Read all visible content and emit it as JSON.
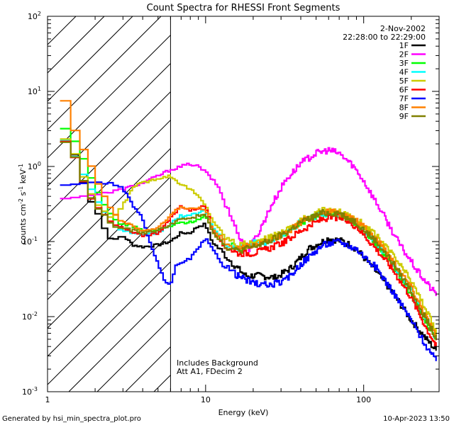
{
  "chart_data": {
    "type": "line",
    "title": "Count Spectra for RHESSI Front Segments",
    "xlabel": "Energy (keV)",
    "ylabel": "counts cm-2 s-1 keV-1",
    "xscale": "log",
    "yscale": "log",
    "xlim": [
      1,
      300
    ],
    "ylim": [
      0.001,
      100
    ],
    "x_ticks": [
      {
        "v": 1,
        "label": "1"
      },
      {
        "v": 10,
        "label": "10"
      },
      {
        "v": 100,
        "label": "100"
      }
    ],
    "y_ticks": [
      {
        "v": 0.001,
        "base": "10",
        "exp": "-3"
      },
      {
        "v": 0.01,
        "base": "10",
        "exp": "-2"
      },
      {
        "v": 0.1,
        "base": "10",
        "exp": "-1"
      },
      {
        "v": 1,
        "base": "10",
        "exp": "0"
      },
      {
        "v": 10,
        "base": "10",
        "exp": "1"
      },
      {
        "v": 100,
        "base": "10",
        "exp": "2"
      }
    ],
    "attenuator_region_keV": [
      1,
      6
    ],
    "legend": {
      "date": "2-Nov-2002",
      "time_range": "22:28:00 to 22:29:00",
      "position": "top-right"
    },
    "annotations": [
      "Includes Background",
      "Att A1, FDecim 2"
    ],
    "series": [
      {
        "name": "1F",
        "color": "#000000",
        "points": [
          [
            1.2,
            2.2
          ],
          [
            1.4,
            2.1
          ],
          [
            1.6,
            1.0
          ],
          [
            1.8,
            0.4
          ],
          [
            2.0,
            0.3
          ],
          [
            2.3,
            0.15
          ],
          [
            2.6,
            0.1
          ],
          [
            3.0,
            0.12
          ],
          [
            3.5,
            0.09
          ],
          [
            4.0,
            0.085
          ],
          [
            5.0,
            0.09
          ],
          [
            6.0,
            0.1
          ],
          [
            7.0,
            0.13
          ],
          [
            8.0,
            0.13
          ],
          [
            9.0,
            0.16
          ],
          [
            10,
            0.17
          ],
          [
            11,
            0.1
          ],
          [
            13,
            0.07
          ],
          [
            15,
            0.05
          ],
          [
            18,
            0.035
          ],
          [
            22,
            0.035
          ],
          [
            28,
            0.033
          ],
          [
            35,
            0.045
          ],
          [
            45,
            0.08
          ],
          [
            60,
            0.11
          ],
          [
            75,
            0.1
          ],
          [
            90,
            0.08
          ],
          [
            120,
            0.04
          ],
          [
            150,
            0.022
          ],
          [
            200,
            0.009
          ],
          [
            250,
            0.005
          ],
          [
            290,
            0.0035
          ]
        ]
      },
      {
        "name": "2F",
        "color": "#ff00ff",
        "points": [
          [
            1.2,
            0.35
          ],
          [
            1.5,
            0.4
          ],
          [
            2.0,
            0.42
          ],
          [
            2.5,
            0.45
          ],
          [
            3.0,
            0.5
          ],
          [
            4.0,
            0.6
          ],
          [
            5.0,
            0.75
          ],
          [
            6.0,
            0.9
          ],
          [
            7.0,
            1.0
          ],
          [
            8.0,
            1.08
          ],
          [
            9.0,
            1.0
          ],
          [
            10,
            0.85
          ],
          [
            12,
            0.55
          ],
          [
            14,
            0.25
          ],
          [
            17,
            0.1
          ],
          [
            19,
            0.08
          ],
          [
            22,
            0.14
          ],
          [
            26,
            0.3
          ],
          [
            32,
            0.65
          ],
          [
            40,
            1.1
          ],
          [
            50,
            1.5
          ],
          [
            60,
            1.65
          ],
          [
            70,
            1.5
          ],
          [
            85,
            1.05
          ],
          [
            100,
            0.65
          ],
          [
            130,
            0.25
          ],
          [
            170,
            0.09
          ],
          [
            220,
            0.04
          ],
          [
            270,
            0.023
          ],
          [
            290,
            0.02
          ]
        ]
      },
      {
        "name": "3F",
        "color": "#00ff00",
        "points": [
          [
            1.2,
            3.7
          ],
          [
            1.4,
            2.6
          ],
          [
            1.6,
            1.8
          ],
          [
            1.8,
            0.9
          ],
          [
            2.0,
            0.55
          ],
          [
            2.3,
            0.32
          ],
          [
            2.6,
            0.2
          ],
          [
            3.0,
            0.17
          ],
          [
            3.5,
            0.16
          ],
          [
            4.0,
            0.14
          ],
          [
            5.0,
            0.14
          ],
          [
            6.0,
            0.16
          ],
          [
            7.0,
            0.18
          ],
          [
            8.0,
            0.18
          ],
          [
            9.0,
            0.2
          ],
          [
            10,
            0.22
          ],
          [
            11,
            0.15
          ],
          [
            13,
            0.1
          ],
          [
            16,
            0.08
          ],
          [
            20,
            0.09
          ],
          [
            25,
            0.1
          ],
          [
            32,
            0.13
          ],
          [
            40,
            0.18
          ],
          [
            55,
            0.24
          ],
          [
            70,
            0.22
          ],
          [
            90,
            0.17
          ],
          [
            120,
            0.09
          ],
          [
            150,
            0.05
          ],
          [
            200,
            0.02
          ],
          [
            250,
            0.008
          ],
          [
            290,
            0.005
          ]
        ]
      },
      {
        "name": "4F",
        "color": "#00ffff",
        "points": [
          [
            1.2,
            2.7
          ],
          [
            1.4,
            2.0
          ],
          [
            1.6,
            1.0
          ],
          [
            1.8,
            0.6
          ],
          [
            2.0,
            0.4
          ],
          [
            2.3,
            0.25
          ],
          [
            2.6,
            0.17
          ],
          [
            3.0,
            0.14
          ],
          [
            3.5,
            0.13
          ],
          [
            4.0,
            0.12
          ],
          [
            5.0,
            0.13
          ],
          [
            6.0,
            0.17
          ],
          [
            7.0,
            0.22
          ],
          [
            8.0,
            0.22
          ],
          [
            9.0,
            0.24
          ],
          [
            10,
            0.27
          ],
          [
            11,
            0.16
          ],
          [
            13,
            0.1
          ],
          [
            16,
            0.08
          ],
          [
            20,
            0.095
          ],
          [
            25,
            0.1
          ],
          [
            32,
            0.13
          ],
          [
            40,
            0.18
          ],
          [
            55,
            0.24
          ],
          [
            70,
            0.23
          ],
          [
            90,
            0.18
          ],
          [
            120,
            0.1
          ],
          [
            150,
            0.055
          ],
          [
            200,
            0.022
          ],
          [
            250,
            0.009
          ],
          [
            290,
            0.005
          ]
        ]
      },
      {
        "name": "5F",
        "color": "#cccc00",
        "points": [
          [
            1.2,
            2.5
          ],
          [
            1.4,
            2.2
          ],
          [
            1.6,
            1.0
          ],
          [
            1.8,
            0.5
          ],
          [
            2.0,
            0.35
          ],
          [
            2.3,
            0.25
          ],
          [
            2.6,
            0.2
          ],
          [
            3.0,
            0.3
          ],
          [
            3.5,
            0.55
          ],
          [
            4.0,
            0.6
          ],
          [
            5.0,
            0.7
          ],
          [
            6.0,
            0.75
          ],
          [
            7.0,
            0.58
          ],
          [
            8.0,
            0.5
          ],
          [
            9.0,
            0.4
          ],
          [
            10,
            0.3
          ],
          [
            11,
            0.2
          ],
          [
            13,
            0.12
          ],
          [
            16,
            0.09
          ],
          [
            20,
            0.095
          ],
          [
            25,
            0.11
          ],
          [
            32,
            0.14
          ],
          [
            40,
            0.19
          ],
          [
            55,
            0.26
          ],
          [
            70,
            0.25
          ],
          [
            90,
            0.2
          ],
          [
            120,
            0.12
          ],
          [
            150,
            0.07
          ],
          [
            200,
            0.03
          ],
          [
            250,
            0.012
          ],
          [
            290,
            0.006
          ]
        ]
      },
      {
        "name": "6F",
        "color": "#ff0000",
        "points": [
          [
            1.2,
            2.3
          ],
          [
            1.4,
            2.0
          ],
          [
            1.6,
            0.95
          ],
          [
            1.8,
            0.45
          ],
          [
            2.0,
            0.33
          ],
          [
            2.3,
            0.22
          ],
          [
            2.6,
            0.17
          ],
          [
            3.0,
            0.15
          ],
          [
            3.5,
            0.13
          ],
          [
            4.0,
            0.12
          ],
          [
            5.0,
            0.13
          ],
          [
            6.0,
            0.2
          ],
          [
            7.0,
            0.3
          ],
          [
            8.0,
            0.26
          ],
          [
            9.0,
            0.28
          ],
          [
            10,
            0.3
          ],
          [
            11,
            0.15
          ],
          [
            13,
            0.09
          ],
          [
            16,
            0.07
          ],
          [
            20,
            0.07
          ],
          [
            25,
            0.08
          ],
          [
            32,
            0.1
          ],
          [
            40,
            0.14
          ],
          [
            55,
            0.2
          ],
          [
            70,
            0.21
          ],
          [
            90,
            0.16
          ],
          [
            120,
            0.08
          ],
          [
            150,
            0.045
          ],
          [
            200,
            0.018
          ],
          [
            250,
            0.007
          ],
          [
            290,
            0.004
          ]
        ]
      },
      {
        "name": "7F",
        "color": "#0000ff",
        "points": [
          [
            1.2,
            0.55
          ],
          [
            1.4,
            0.55
          ],
          [
            1.6,
            0.6
          ],
          [
            1.8,
            0.6
          ],
          [
            2.0,
            0.65
          ],
          [
            2.3,
            0.6
          ],
          [
            2.6,
            0.58
          ],
          [
            3.0,
            0.5
          ],
          [
            3.5,
            0.3
          ],
          [
            4.0,
            0.2
          ],
          [
            4.5,
            0.09
          ],
          [
            5.0,
            0.05
          ],
          [
            5.5,
            0.03
          ],
          [
            6.0,
            0.025
          ],
          [
            6.5,
            0.05
          ],
          [
            7.0,
            0.05
          ],
          [
            8.0,
            0.06
          ],
          [
            9.0,
            0.08
          ],
          [
            10,
            0.11
          ],
          [
            11,
            0.08
          ],
          [
            13,
            0.05
          ],
          [
            16,
            0.035
          ],
          [
            20,
            0.028
          ],
          [
            25,
            0.026
          ],
          [
            32,
            0.03
          ],
          [
            40,
            0.05
          ],
          [
            55,
            0.09
          ],
          [
            70,
            0.1
          ],
          [
            90,
            0.08
          ],
          [
            120,
            0.045
          ],
          [
            150,
            0.023
          ],
          [
            200,
            0.009
          ],
          [
            250,
            0.004
          ],
          [
            290,
            0.0025
          ]
        ]
      },
      {
        "name": "8F",
        "color": "#ff8000",
        "points": [
          [
            1.2,
            12.5
          ],
          [
            1.4,
            5.0
          ],
          [
            1.6,
            2.0
          ],
          [
            1.8,
            1.4
          ],
          [
            2.0,
            0.75
          ],
          [
            2.3,
            0.4
          ],
          [
            2.6,
            0.25
          ],
          [
            3.0,
            0.18
          ],
          [
            3.5,
            0.16
          ],
          [
            4.0,
            0.14
          ],
          [
            5.0,
            0.15
          ],
          [
            6.0,
            0.22
          ],
          [
            7.0,
            0.3
          ],
          [
            8.0,
            0.27
          ],
          [
            9.0,
            0.28
          ],
          [
            10,
            0.27
          ],
          [
            11,
            0.15
          ],
          [
            13,
            0.1
          ],
          [
            16,
            0.08
          ],
          [
            20,
            0.09
          ],
          [
            25,
            0.1
          ],
          [
            32,
            0.13
          ],
          [
            40,
            0.18
          ],
          [
            55,
            0.25
          ],
          [
            70,
            0.24
          ],
          [
            90,
            0.19
          ],
          [
            120,
            0.11
          ],
          [
            150,
            0.06
          ],
          [
            200,
            0.025
          ],
          [
            250,
            0.01
          ],
          [
            290,
            0.005
          ]
        ]
      },
      {
        "name": "9F",
        "color": "#808000",
        "points": [
          [
            1.2,
            2.3
          ],
          [
            1.4,
            2.0
          ],
          [
            1.6,
            0.9
          ],
          [
            1.8,
            0.45
          ],
          [
            2.0,
            0.32
          ],
          [
            2.3,
            0.22
          ],
          [
            2.6,
            0.16
          ],
          [
            3.0,
            0.15
          ],
          [
            3.5,
            0.14
          ],
          [
            4.0,
            0.13
          ],
          [
            5.0,
            0.14
          ],
          [
            6.0,
            0.17
          ],
          [
            7.0,
            0.2
          ],
          [
            8.0,
            0.2
          ],
          [
            9.0,
            0.22
          ],
          [
            10,
            0.24
          ],
          [
            11,
            0.14
          ],
          [
            13,
            0.09
          ],
          [
            16,
            0.075
          ],
          [
            20,
            0.085
          ],
          [
            25,
            0.1
          ],
          [
            32,
            0.13
          ],
          [
            40,
            0.18
          ],
          [
            55,
            0.24
          ],
          [
            70,
            0.24
          ],
          [
            90,
            0.18
          ],
          [
            120,
            0.1
          ],
          [
            150,
            0.055
          ],
          [
            200,
            0.022
          ],
          [
            250,
            0.009
          ],
          [
            290,
            0.005
          ]
        ]
      }
    ]
  },
  "footer": {
    "left": "Generated by hsi_min_spectra_plot.pro",
    "right": "10-Apr-2023 13:50"
  }
}
